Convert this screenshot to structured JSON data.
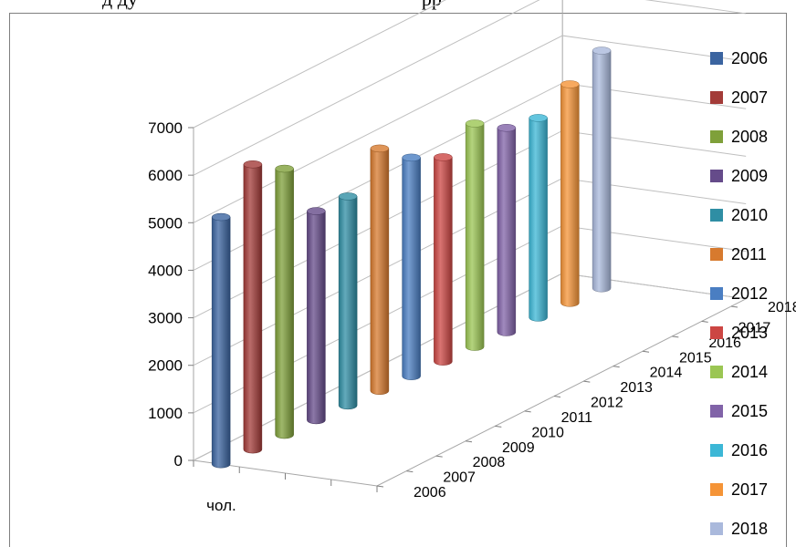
{
  "header_text": "д ду",
  "header_text_right": "рр",
  "chart_data": {
    "type": "bar",
    "style": "3d-cylinder",
    "title": "",
    "categories": [
      "чол."
    ],
    "depth_axis": [
      "2006",
      "2007",
      "2008",
      "2009",
      "2010",
      "2011",
      "2012",
      "2013",
      "2014",
      "2015",
      "2016",
      "2017",
      "2018"
    ],
    "series": [
      {
        "name": "2006",
        "values": [
          5200
        ],
        "color": "#3b64a0"
      },
      {
        "name": "2007",
        "values": [
          6000
        ],
        "color": "#a33b38"
      },
      {
        "name": "2008",
        "values": [
          5600
        ],
        "color": "#7fa03a"
      },
      {
        "name": "2009",
        "values": [
          4400
        ],
        "color": "#654b8a"
      },
      {
        "name": "2010",
        "values": [
          4400
        ],
        "color": "#2f8ea4"
      },
      {
        "name": "2011",
        "values": [
          5100
        ],
        "color": "#d77a2e"
      },
      {
        "name": "2012",
        "values": [
          4600
        ],
        "color": "#4a7ec2"
      },
      {
        "name": "2013",
        "values": [
          4300
        ],
        "color": "#cc4643"
      },
      {
        "name": "2014",
        "values": [
          4700
        ],
        "color": "#9bc653"
      },
      {
        "name": "2015",
        "values": [
          4300
        ],
        "color": "#8163a8"
      },
      {
        "name": "2016",
        "values": [
          4200
        ],
        "color": "#3cb7d6"
      },
      {
        "name": "2017",
        "values": [
          4600
        ],
        "color": "#f59437"
      },
      {
        "name": "2018",
        "values": [
          5000
        ],
        "color": "#aab9dc"
      }
    ],
    "yticks": [
      "0",
      "1000",
      "2000",
      "3000",
      "4000",
      "5000",
      "6000",
      "7000"
    ],
    "ylim": [
      0,
      7000
    ],
    "grid": true,
    "legend": "right"
  }
}
